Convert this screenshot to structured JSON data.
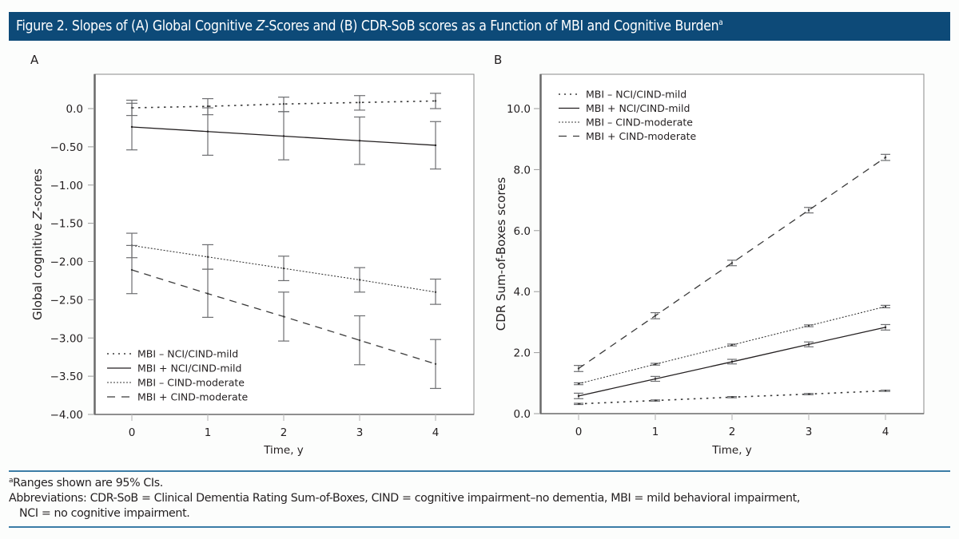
{
  "figure": {
    "title": "Figure 2. Slopes of (A) Global Cognitive Z-Scores and (B) CDR-SoB scores as a Function of MBI and Cognitive Burden",
    "title_parts": {
      "prefix": "Figure 2. Slopes of (A) Global Cognitive ",
      "italic": "Z",
      "suffix": "-Scores and (B) CDR-SoB scores as a Function of MBI and Cognitive Burden",
      "superscript": "a"
    },
    "colors": {
      "title_bar": "#0d4a78",
      "rule": "#3b7ca6",
      "ink": "#231f20",
      "error_bar": "#6d6e71"
    }
  },
  "footnotes": {
    "note_marker": "a",
    "note": "Ranges shown are 95% CIs.",
    "abbreviations_line1": "Abbreviations: CDR-SoB = Clinical Dementia Rating Sum-of-Boxes, CIND = cognitive impairment–no dementia, MBI = mild behavioral impairment,",
    "abbreviations_line2": "NCI = no cognitive impairment."
  },
  "chart_data": [
    {
      "panel": "A",
      "type": "line",
      "title": "",
      "xlabel": "Time, y",
      "ylabel_prefix": "Global cognitive ",
      "ylabel_italic": "Z",
      "ylabel_suffix": "-scores",
      "x": [
        0,
        1,
        2,
        3,
        4
      ],
      "xlim": [
        -0.5,
        4.5
      ],
      "ylim": [
        -4.0,
        0.45
      ],
      "yticks": [
        0.0,
        -0.5,
        -1.0,
        -1.5,
        -2.0,
        -2.5,
        -3.0,
        -3.5,
        -4.0
      ],
      "ytick_labels": [
        "0.0",
        "−0.50",
        "−1.00",
        "−1.50",
        "−2.00",
        "−2.50",
        "−3.00",
        "−3.50",
        "−4.00"
      ],
      "xtick_labels": [
        "0",
        "1",
        "2",
        "3",
        "4"
      ],
      "grid": false,
      "legend_position": "bottom-left",
      "error_bars": "95% CI",
      "series": [
        {
          "name": "MBI – NCI/CIND-mild",
          "style": "dotted",
          "values": [
            0.01,
            0.03,
            0.06,
            0.08,
            0.1
          ],
          "ci_low": [
            -0.09,
            -0.08,
            -0.04,
            -0.02,
            0.0
          ],
          "ci_high": [
            0.11,
            0.13,
            0.15,
            0.17,
            0.2
          ]
        },
        {
          "name": "MBI + NCI/CIND-mild",
          "style": "solid",
          "values": [
            -0.24,
            -0.3,
            -0.36,
            -0.42,
            -0.48
          ],
          "ci_low": [
            -0.54,
            -0.61,
            -0.67,
            -0.73,
            -0.79
          ],
          "ci_high": [
            0.07,
            0.01,
            -0.04,
            -0.11,
            -0.17
          ]
        },
        {
          "name": "MBI – CIND-moderate",
          "style": "fine-dotted",
          "values": [
            -1.79,
            -1.94,
            -2.09,
            -2.24,
            -2.4
          ],
          "ci_low": [
            -1.95,
            -2.1,
            -2.25,
            -2.4,
            -2.56
          ],
          "ci_high": [
            -1.63,
            -1.78,
            -1.93,
            -2.08,
            -2.23
          ]
        },
        {
          "name": "MBI + CIND-moderate",
          "style": "dashed",
          "values": [
            -2.11,
            -2.42,
            -2.72,
            -3.03,
            -3.34
          ],
          "ci_low": [
            -2.42,
            -2.73,
            -3.04,
            -3.35,
            -3.66
          ],
          "ci_high": [
            -1.79,
            -2.1,
            -2.4,
            -2.71,
            -3.02
          ]
        }
      ]
    },
    {
      "panel": "B",
      "type": "line",
      "title": "",
      "xlabel": "Time, y",
      "ylabel": "CDR Sum-of-Boxes scores",
      "x": [
        0,
        1,
        2,
        3,
        4
      ],
      "xlim": [
        -0.5,
        4.5
      ],
      "ylim": [
        0.0,
        11.1
      ],
      "yticks": [
        0,
        2,
        4,
        6,
        8,
        10
      ],
      "ytick_labels": [
        "0.0",
        "2.0",
        "4.0",
        "6.0",
        "8.0",
        "10.0"
      ],
      "xtick_labels": [
        "0",
        "1",
        "2",
        "3",
        "4"
      ],
      "grid": false,
      "legend_position": "top-left",
      "error_bars": "95% CI",
      "series": [
        {
          "name": "MBI – NCI/CIND-mild",
          "style": "dotted",
          "values": [
            0.32,
            0.43,
            0.54,
            0.64,
            0.75
          ],
          "ci_low": [
            0.3,
            0.41,
            0.52,
            0.62,
            0.73
          ],
          "ci_high": [
            0.34,
            0.45,
            0.56,
            0.66,
            0.77
          ]
        },
        {
          "name": "MBI + NCI/CIND-mild",
          "style": "solid",
          "values": [
            0.58,
            1.14,
            1.7,
            2.27,
            2.83
          ],
          "ci_low": [
            0.49,
            1.06,
            1.63,
            2.19,
            2.74
          ],
          "ci_high": [
            0.67,
            1.22,
            1.78,
            2.35,
            2.92
          ]
        },
        {
          "name": "MBI – CIND-moderate",
          "style": "fine-dotted",
          "values": [
            0.98,
            1.62,
            2.25,
            2.88,
            3.51
          ],
          "ci_low": [
            0.95,
            1.59,
            2.22,
            2.85,
            3.47
          ],
          "ci_high": [
            1.01,
            1.65,
            2.28,
            2.91,
            3.55
          ]
        },
        {
          "name": "MBI + CIND-moderate",
          "style": "dashed",
          "values": [
            1.48,
            3.21,
            4.94,
            6.67,
            8.4
          ],
          "ci_low": [
            1.38,
            3.11,
            4.85,
            6.58,
            8.3
          ],
          "ci_high": [
            1.58,
            3.31,
            5.03,
            6.76,
            8.5
          ]
        }
      ]
    }
  ]
}
